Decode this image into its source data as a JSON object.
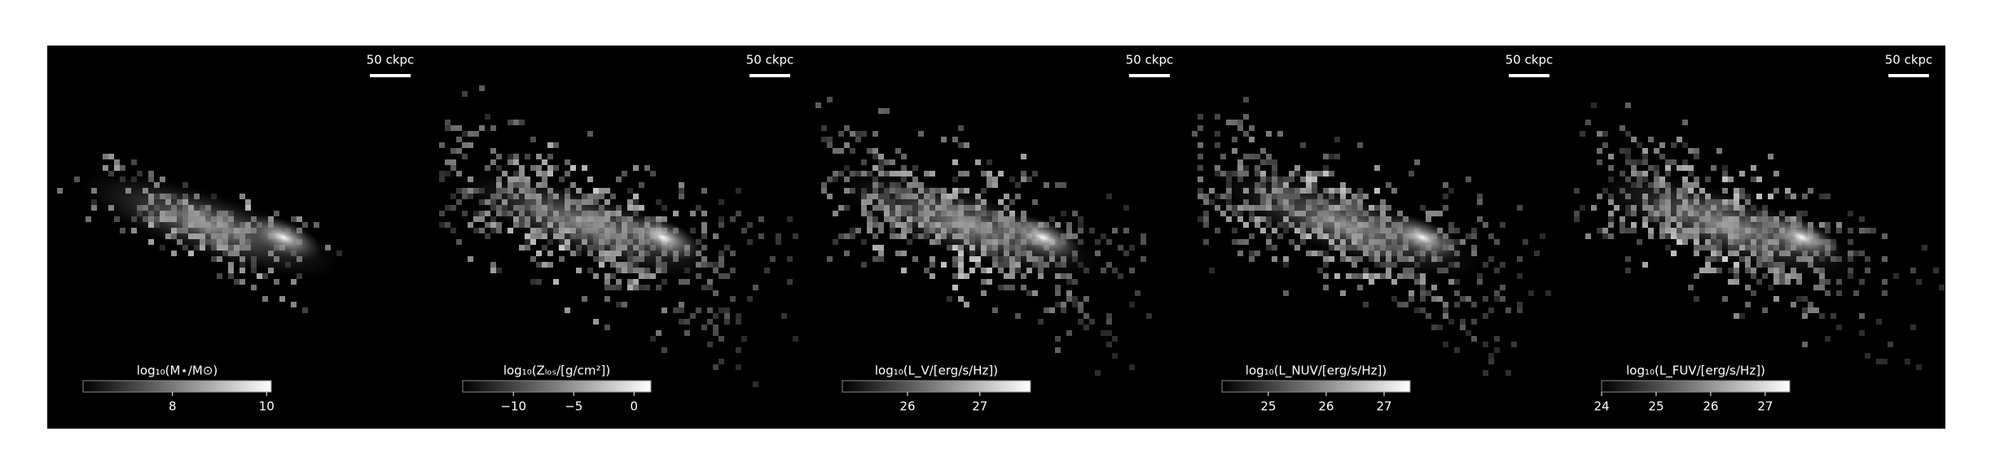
{
  "chart_data": [
    {
      "type": "image",
      "scale_bar": "50 ckpc",
      "colorbar_label": "log₁₀(M⋆/M⊙)",
      "clim": [
        6.1,
        10.1
      ],
      "cticks": [
        8,
        10
      ]
    },
    {
      "type": "image",
      "scale_bar": "50 ckpc",
      "colorbar_label": "log₁₀(Zₗₒₛ/[g/cm²])",
      "clim": [
        -14.2,
        1.4
      ],
      "cticks": [
        {
          "value": -10,
          "label": "−10"
        },
        {
          "value": -5,
          "label": "−5"
        },
        {
          "value": 0,
          "label": "0"
        }
      ]
    },
    {
      "type": "image",
      "scale_bar": "50 ckpc",
      "colorbar_label": "log₁₀(L_V/[erg/s/Hz])",
      "clim": [
        25.1,
        27.7
      ],
      "cticks": [
        26,
        27
      ]
    },
    {
      "type": "image",
      "scale_bar": "50 ckpc",
      "colorbar_label": "log₁₀(L_NUV/[erg/s/Hz])",
      "clim": [
        24.2,
        27.45
      ],
      "cticks": [
        25,
        26,
        27
      ]
    },
    {
      "type": "image",
      "scale_bar": "50 ckpc",
      "colorbar_label": "log₁₀(L_FUV/[erg/s/Hz])",
      "clim": [
        24.0,
        27.45
      ],
      "cticks": [
        24,
        25,
        26,
        27
      ]
    }
  ]
}
